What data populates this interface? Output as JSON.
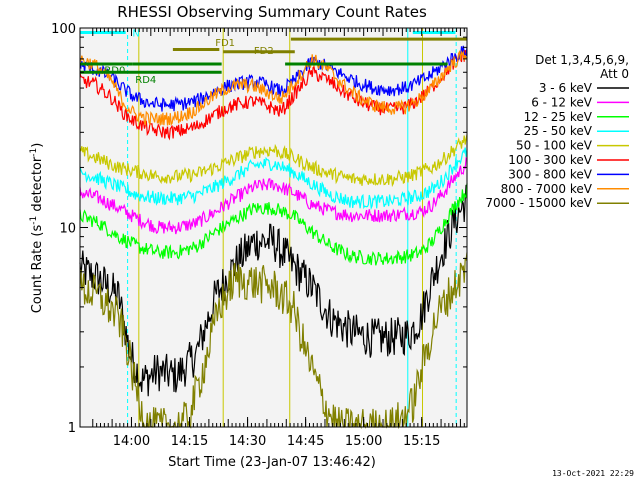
{
  "chart_data": {
    "type": "line",
    "title": "RHESSI Observing Summary Count Rates",
    "xlabel": "Start Time (23-Jan-07 13:46:42)",
    "ylabel_prefix": "Count Rate (s",
    "ylabel_sup": "-1",
    "ylabel_mid": " detector",
    "ylabel_sup2": "-1",
    "ylabel_suffix": ")",
    "y_scale": "log",
    "ylim": [
      1,
      100
    ],
    "y_ticks": [
      "1",
      "10",
      "100"
    ],
    "x_range_minutes_after_start": [
      0,
      100
    ],
    "x_ticks": [
      {
        "label": "14:00",
        "minute": 13.3
      },
      {
        "label": "14:15",
        "minute": 28.3
      },
      {
        "label": "14:30",
        "minute": 43.3
      },
      {
        "label": "14:45",
        "minute": 58.3
      },
      {
        "label": "15:00",
        "minute": 73.3
      },
      {
        "label": "15:15",
        "minute": 88.3
      }
    ],
    "legend_header": [
      "Det 1,3,4,5,6,9,",
      "Att 0"
    ],
    "legend_placement": "right",
    "series": [
      {
        "name": "3 - 6 keV",
        "color": "#000000",
        "x": [
          0,
          5,
          10,
          13,
          16,
          20,
          25,
          30,
          35,
          40,
          45,
          50,
          55,
          60,
          65,
          70,
          75,
          80,
          85,
          88,
          91,
          94,
          97,
          100
        ],
        "y": [
          6.2,
          5.5,
          4.5,
          2.3,
          1.7,
          1.9,
          1.8,
          2.3,
          4.5,
          6.5,
          8.5,
          8.5,
          6.5,
          5,
          3.5,
          3,
          2.8,
          2.8,
          2.9,
          3.5,
          5.5,
          8,
          11,
          14
        ]
      },
      {
        "name": "6 - 12 keV",
        "color": "#ff00ff",
        "x": [
          0,
          5,
          10,
          15,
          20,
          25,
          30,
          35,
          40,
          45,
          50,
          55,
          60,
          65,
          70,
          75,
          80,
          85,
          88,
          91,
          94,
          97,
          100
        ],
        "y": [
          15,
          14,
          12.5,
          11,
          10,
          10,
          10.5,
          12,
          14,
          16,
          16.5,
          15,
          13,
          12,
          11.5,
          11.5,
          11.5,
          11.8,
          12,
          13,
          15,
          18,
          21
        ]
      },
      {
        "name": "12 - 25 keV",
        "color": "#00ff00",
        "x": [
          0,
          5,
          10,
          15,
          20,
          25,
          30,
          35,
          40,
          45,
          50,
          55,
          60,
          65,
          70,
          75,
          80,
          85,
          88,
          91,
          94,
          97,
          100
        ],
        "y": [
          11.5,
          10.5,
          9,
          8,
          7.5,
          7.5,
          8,
          9.5,
          11,
          12.5,
          12.5,
          11.5,
          9.5,
          8,
          7.2,
          7,
          7,
          7.2,
          7.5,
          8.5,
          10.5,
          13,
          15.5
        ]
      },
      {
        "name": "25 - 50 keV",
        "color": "#00ffff",
        "x": [
          0,
          5,
          10,
          15,
          20,
          25,
          30,
          35,
          40,
          45,
          50,
          55,
          60,
          65,
          70,
          75,
          80,
          85,
          88,
          91,
          94,
          97,
          100
        ],
        "y": [
          19,
          17.5,
          16,
          14.5,
          14,
          14,
          14.5,
          16,
          18,
          20.5,
          21,
          19,
          16.5,
          14.5,
          13.5,
          13.5,
          13.5,
          14,
          14.5,
          15.5,
          17.5,
          21,
          24
        ]
      },
      {
        "name": "50 - 100 keV",
        "color": "#c8c800",
        "x": [
          0,
          5,
          10,
          15,
          20,
          25,
          30,
          35,
          40,
          45,
          50,
          55,
          60,
          65,
          70,
          75,
          80,
          85,
          88,
          91,
          94,
          97,
          100
        ],
        "y": [
          24,
          22,
          20,
          19,
          18,
          18,
          18.5,
          20,
          22,
          24,
          24.5,
          22.5,
          20,
          18.5,
          17.5,
          17.5,
          17.5,
          18,
          19,
          20,
          22,
          25,
          28
        ]
      },
      {
        "name": "100 - 300 keV",
        "color": "#ff0000",
        "x": [
          0,
          4,
          8,
          11,
          14,
          18,
          22,
          26,
          30,
          34,
          38,
          42,
          45,
          48,
          52,
          56,
          60,
          64,
          68,
          72,
          76,
          80,
          84,
          87,
          90,
          93,
          96,
          100
        ],
        "y": [
          55,
          52,
          45,
          38,
          34,
          31,
          30,
          30.5,
          32,
          36,
          40,
          42,
          43,
          41,
          38,
          48,
          60,
          55,
          48,
          43,
          40,
          39,
          40,
          43,
          48,
          56,
          65,
          75
        ]
      },
      {
        "name": "300 - 800 keV",
        "color": "#0000ff",
        "x": [
          0,
          4,
          8,
          11,
          14,
          18,
          22,
          26,
          30,
          34,
          38,
          42,
          45,
          48,
          52,
          56,
          60,
          64,
          68,
          72,
          76,
          80,
          84,
          87,
          90,
          93,
          96,
          100
        ],
        "y": [
          65,
          62,
          57,
          50,
          45,
          42,
          41,
          41.5,
          43,
          47,
          51,
          53,
          54,
          52,
          48,
          56,
          68,
          64,
          58,
          53,
          50,
          49,
          50,
          53,
          57,
          63,
          70,
          78
        ]
      },
      {
        "name": "800 - 7000 keV",
        "color": "#ff8c00",
        "x": [
          0,
          4,
          8,
          11,
          14,
          18,
          22,
          26,
          30,
          34,
          38,
          42,
          45,
          48,
          52,
          56,
          60,
          64,
          68,
          72,
          76,
          80,
          84,
          87,
          90,
          93,
          96,
          100
        ],
        "y": [
          70,
          65,
          55,
          43,
          37,
          35,
          35,
          36,
          39,
          45,
          50,
          52,
          51,
          48,
          44,
          55,
          70,
          62,
          52,
          45,
          41,
          39.5,
          40,
          43,
          48,
          56,
          66,
          75
        ]
      },
      {
        "name": "7000 - 15000 keV",
        "color": "#808000",
        "x": [
          0,
          5,
          10,
          12,
          14,
          16,
          18,
          20,
          22,
          25,
          28,
          32,
          36,
          40,
          45,
          50,
          55,
          58,
          61,
          64,
          67,
          70,
          73,
          76,
          80,
          83,
          86,
          89,
          92,
          95,
          98,
          100
        ],
        "y": [
          5,
          4.5,
          3.5,
          2.6,
          1.7,
          1.2,
          1,
          1,
          1,
          1,
          1.1,
          2,
          4,
          5.5,
          5.3,
          5,
          4,
          2.5,
          1.7,
          1.2,
          1,
          1,
          1,
          1,
          1,
          1.1,
          1.3,
          2.2,
          3.5,
          4.5,
          5.5,
          6.5
        ]
      }
    ],
    "annotations": {
      "segment_labels": [
        "N",
        "FD1",
        "FD2",
        "RD0",
        "RD4"
      ],
      "marker_lines": [
        {
          "label": "N",
          "color": "#00ffff",
          "x_start": 0,
          "x_end": 11.8,
          "y": 95,
          "label_x": 14.5,
          "label_y": 95
        },
        {
          "color": "#00ffff",
          "x_start": 86,
          "x_end": 97,
          "y": 95
        },
        {
          "label": "FD1",
          "color": "#808000",
          "x_start": 24,
          "x_end": 36,
          "y": 78,
          "label_x": 37.5,
          "label_y": 85
        },
        {
          "color": "#808000",
          "x_start": 54.5,
          "x_end": 100,
          "y": 88
        },
        {
          "label": "FD2",
          "color": "#808000",
          "x_start": 37,
          "x_end": 55.5,
          "y": 76,
          "label_x": 47.5,
          "label_y": 77.5
        },
        {
          "label": "RD0",
          "color": "#008000",
          "x_start": 0,
          "x_end": 13.6,
          "y": 66,
          "label_x": 9,
          "label_y": 62
        },
        {
          "color": "#008000",
          "x_start": 13.6,
          "x_end": 36.6,
          "y": 66
        },
        {
          "color": "#008000",
          "x_start": 53,
          "x_end": 95,
          "y": 66
        },
        {
          "label": "RD4",
          "color": "#008000",
          "x_start": 0,
          "x_end": 36.6,
          "y": 60,
          "label_x": 17,
          "label_y": 55.5
        }
      ],
      "vertical_markers": [
        {
          "x": 0,
          "color": "#00ffff",
          "style": "solid"
        },
        {
          "x": 12.3,
          "color": "#00ffff",
          "style": "dashed"
        },
        {
          "x": 84.7,
          "color": "#00ffff",
          "style": "solid"
        },
        {
          "x": 97.2,
          "color": "#00ffff",
          "style": "dashed"
        },
        {
          "x": 15.2,
          "color": "#c8c800",
          "style": "solid"
        },
        {
          "x": 37,
          "color": "#c8c800",
          "style": "solid"
        },
        {
          "x": 54.2,
          "color": "#c8c800",
          "style": "solid"
        },
        {
          "x": 88.5,
          "color": "#c8c800",
          "style": "solid"
        }
      ]
    },
    "grid": false
  },
  "timestamp": "13-Oct-2021 22:29"
}
